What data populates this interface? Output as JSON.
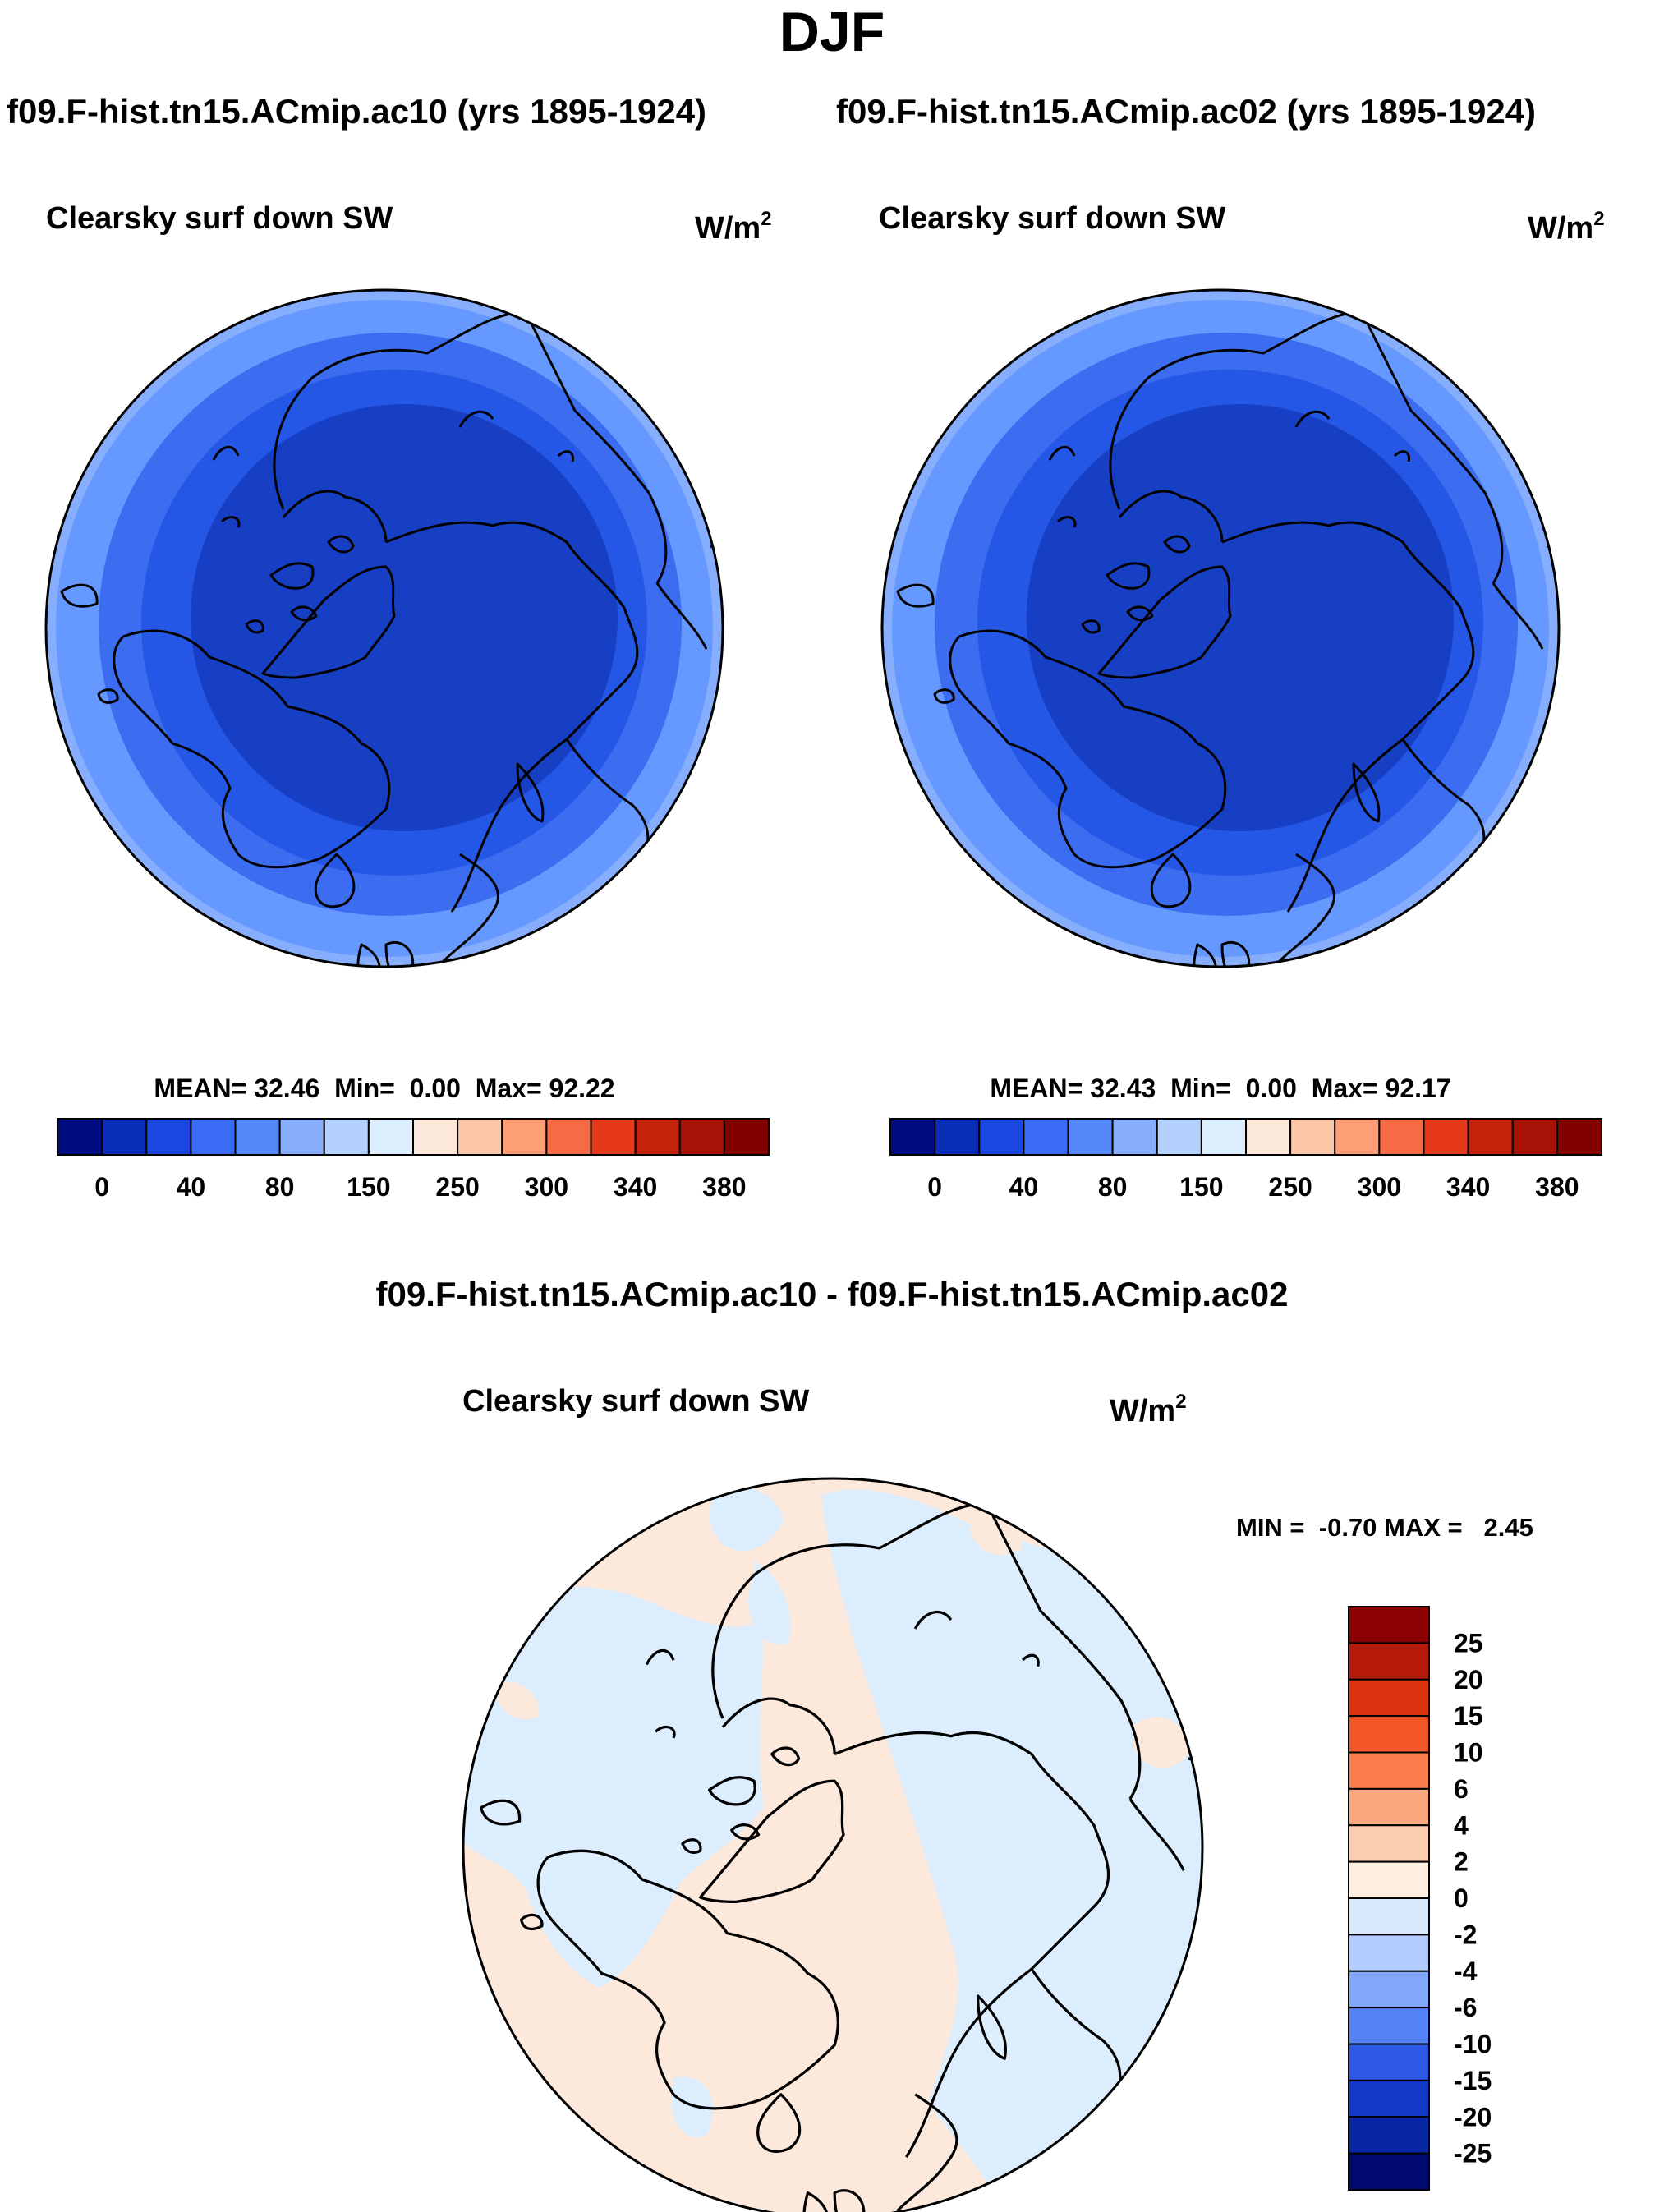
{
  "figure": {
    "title": "DJF",
    "case_a_header": "f09.F-hist.tn15.ACmip.ac10 (yrs 1895-1924)",
    "case_b_header": "f09.F-hist.tn15.ACmip.ac02 (yrs 1895-1924)",
    "diff_header": "f09.F-hist.tn15.ACmip.ac10 - f09.F-hist.tn15.ACmip.ac02"
  },
  "chart_data": [
    {
      "type": "heatmap",
      "projection": "north-polar-stereographic",
      "variable": "Clearsky surf down SW",
      "units_base": "W/m",
      "units_exp": "2",
      "stats": {
        "mean_label": "MEAN=",
        "mean": "32.46",
        "min_label": "Min=",
        "min": "0.00",
        "max_label": "Max=",
        "max": "92.22"
      },
      "field_bands": [
        {
          "level": "60-80",
          "color": "#6699ff"
        },
        {
          "level": "40-60",
          "color": "#3c6cf0"
        },
        {
          "level": "20-40",
          "color": "#2457e6"
        },
        {
          "level": "0-20",
          "color": "#173fc3"
        }
      ],
      "colorbar": {
        "colors": [
          "#000b80",
          "#0a2db5",
          "#1947e0",
          "#3a6bf7",
          "#5487fa",
          "#86aefc",
          "#b4d0fd",
          "#dcedfd",
          "#fde9db",
          "#fdc8a8",
          "#fd9e75",
          "#f66b43",
          "#e6381a",
          "#c4230b",
          "#a81206",
          "#830000"
        ],
        "tick_labels": [
          "0",
          "40",
          "80",
          "150",
          "250",
          "300",
          "340",
          "380"
        ],
        "tick_boundary_index": [
          1,
          3,
          5,
          7,
          9,
          11,
          13,
          15
        ]
      }
    },
    {
      "type": "heatmap",
      "projection": "north-polar-stereographic",
      "variable": "Clearsky surf down SW",
      "units_base": "W/m",
      "units_exp": "2",
      "stats": {
        "mean_label": "MEAN=",
        "mean": "32.43",
        "min_label": "Min=",
        "min": "0.00",
        "max_label": "Max=",
        "max": "92.17"
      },
      "field_bands": [
        {
          "level": "60-80",
          "color": "#6699ff"
        },
        {
          "level": "40-60",
          "color": "#3c6cf0"
        },
        {
          "level": "20-40",
          "color": "#2457e6"
        },
        {
          "level": "0-20",
          "color": "#173fc3"
        }
      ],
      "colorbar": {
        "colors": [
          "#000b80",
          "#0a2db5",
          "#1947e0",
          "#3a6bf7",
          "#5487fa",
          "#86aefc",
          "#b4d0fd",
          "#dcedfd",
          "#fde9db",
          "#fdc8a8",
          "#fd9e75",
          "#f66b43",
          "#e6381a",
          "#c4230b",
          "#a81206",
          "#830000"
        ],
        "tick_labels": [
          "0",
          "40",
          "80",
          "150",
          "250",
          "300",
          "340",
          "380"
        ],
        "tick_boundary_index": [
          1,
          3,
          5,
          7,
          9,
          11,
          13,
          15
        ]
      }
    },
    {
      "type": "heatmap",
      "projection": "north-polar-stereographic",
      "variable": "Clearsky surf down SW",
      "units_base": "W/m",
      "units_exp": "2",
      "range_text": "MIN =  -0.70 MAX =   2.45",
      "dominant_bins": [
        {
          "range": "0 to 2",
          "color": "#fde9db"
        },
        {
          "range": "-2 to 0",
          "color": "#dcedfd"
        }
      ],
      "colorbar": {
        "orientation": "vertical",
        "colors_top_to_bottom": [
          "#8b0000",
          "#b51a0b",
          "#dc3210",
          "#f45526",
          "#fb7c4d",
          "#fca87f",
          "#fdcdb2",
          "#fdeee0",
          "#d9eafd",
          "#b1ccfd",
          "#82a8fb",
          "#5582f4",
          "#2d59e6",
          "#1437c8",
          "#0825a4",
          "#000a6e"
        ],
        "tick_labels_top_to_bottom": [
          "25",
          "20",
          "15",
          "10",
          "6",
          "4",
          "2",
          "0",
          "-2",
          "-4",
          "-6",
          "-10",
          "-15",
          "-20",
          "-25"
        ]
      }
    }
  ]
}
